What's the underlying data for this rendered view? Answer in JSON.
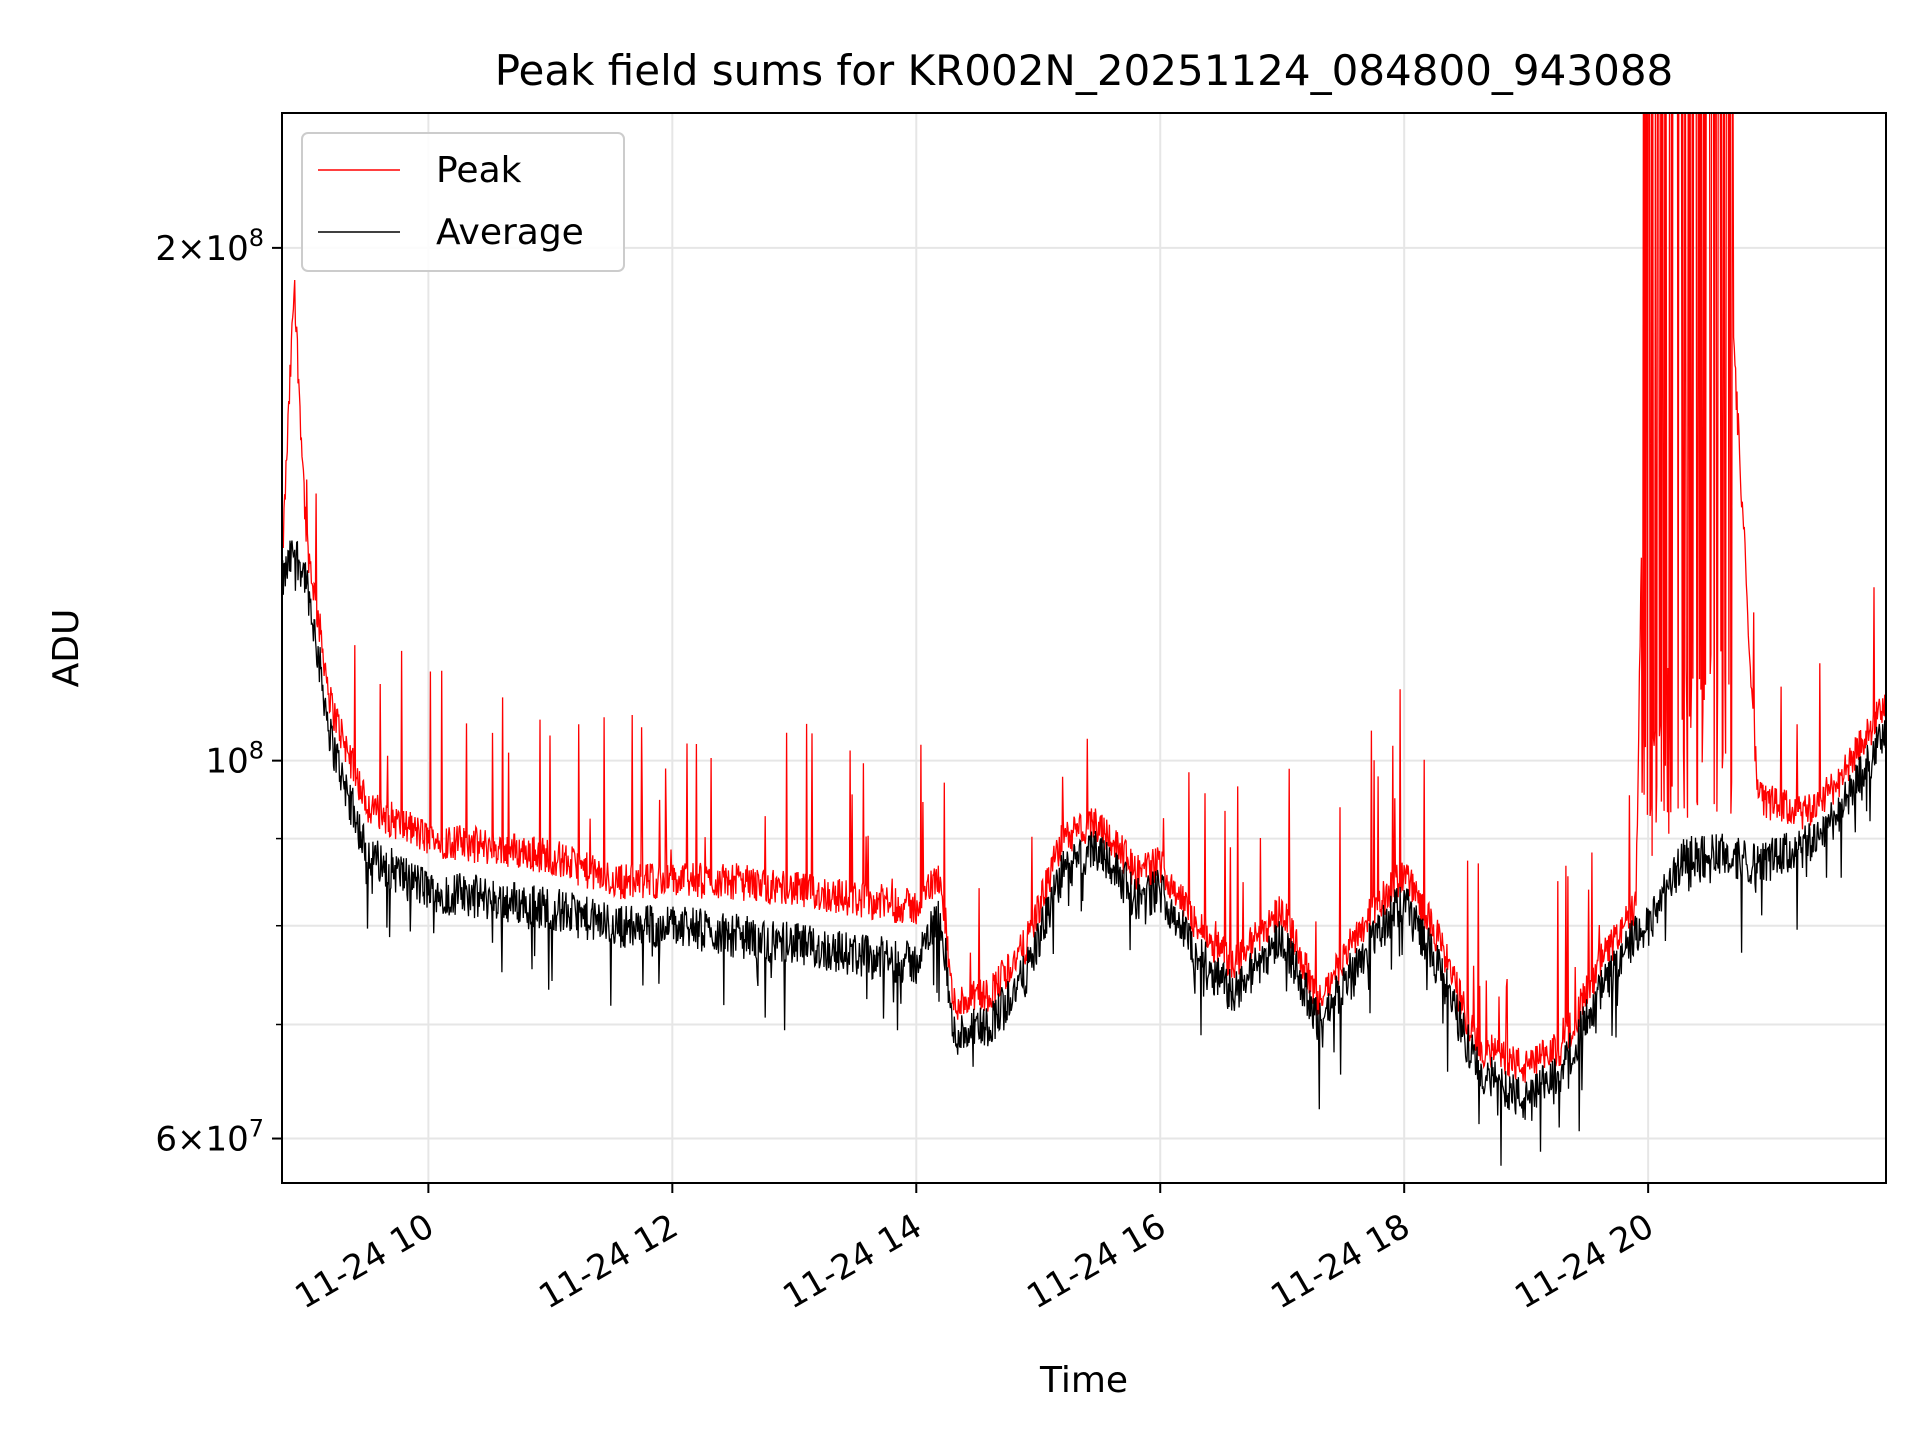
{
  "chart_data": {
    "type": "line",
    "title": "Peak field sums for KR002N_20251124_084800_943088",
    "xlabel": "Time",
    "ylabel": "ADU",
    "yscale": "log",
    "ylim": [
      56500000,
      240000000
    ],
    "xlim": [
      8.8,
      21.95
    ],
    "grid": true,
    "legend": {
      "placement": "top-left",
      "entries": [
        "Peak",
        "Average"
      ]
    },
    "x_ticks": [
      {
        "value": 10,
        "label": "11-24 10"
      },
      {
        "value": 12,
        "label": "11-24 12"
      },
      {
        "value": 14,
        "label": "11-24 14"
      },
      {
        "value": 16,
        "label": "11-24 16"
      },
      {
        "value": 18,
        "label": "11-24 18"
      },
      {
        "value": 20,
        "label": "11-24 20"
      }
    ],
    "y_ticks_major": [
      {
        "value": 200000000,
        "mantissa": "2",
        "exponent": "8"
      },
      {
        "value": 100000000,
        "mantissa": "",
        "exponent": "8"
      },
      {
        "value": 60000000,
        "mantissa": "6",
        "exponent": "7"
      }
    ],
    "y_ticks_minor": [
      70000000,
      80000000,
      90000000
    ],
    "series": [
      {
        "name": "Peak",
        "color": "#ff0000",
        "x": [
          8.8,
          8.9,
          9.0,
          9.2,
          9.5,
          10.0,
          10.5,
          11.0,
          11.5,
          12.0,
          12.5,
          13.0,
          13.5,
          14.0,
          14.2,
          14.3,
          14.6,
          14.9,
          15.2,
          15.5,
          15.8,
          16.0,
          16.3,
          16.6,
          17.0,
          17.3,
          17.6,
          18.0,
          18.3,
          18.6,
          19.0,
          19.3,
          19.6,
          19.9,
          20.0,
          20.3,
          20.6,
          20.9,
          21.3,
          21.6,
          21.95
        ],
        "values": [
          130000000,
          190000000,
          135000000,
          108000000,
          94000000,
          90000000,
          89000000,
          88000000,
          85000000,
          85000000,
          85000000,
          84000000,
          83000000,
          82000000,
          86000000,
          72000000,
          73000000,
          78000000,
          90000000,
          92000000,
          86000000,
          87000000,
          80000000,
          76000000,
          82000000,
          72000000,
          79000000,
          86000000,
          78000000,
          68000000,
          66000000,
          68000000,
          76000000,
          82000000,
          240000000,
          240000000,
          240000000,
          95000000,
          93000000,
          98000000,
          108000000
        ]
      },
      {
        "name": "Average",
        "color": "#000000",
        "x": [
          8.8,
          8.9,
          9.0,
          9.2,
          9.5,
          10.0,
          10.5,
          11.0,
          11.5,
          12.0,
          12.5,
          13.0,
          13.5,
          14.0,
          14.2,
          14.3,
          14.6,
          14.9,
          15.2,
          15.5,
          15.8,
          16.0,
          16.3,
          16.6,
          17.0,
          17.3,
          17.6,
          18.0,
          18.3,
          18.6,
          19.0,
          19.3,
          19.6,
          19.9,
          20.0,
          20.3,
          20.6,
          20.9,
          21.3,
          21.6,
          21.95
        ],
        "values": [
          127000000,
          133000000,
          128000000,
          103000000,
          88000000,
          84000000,
          83000000,
          82000000,
          80000000,
          80000000,
          79000000,
          78000000,
          77000000,
          76000000,
          82000000,
          69000000,
          70000000,
          75000000,
          86000000,
          89000000,
          83000000,
          84000000,
          77000000,
          73000000,
          79000000,
          70000000,
          76000000,
          83000000,
          75000000,
          66000000,
          63000000,
          66000000,
          73000000,
          79000000,
          80000000,
          88000000,
          88000000,
          87000000,
          89000000,
          94000000,
          104000000
        ]
      }
    ]
  }
}
